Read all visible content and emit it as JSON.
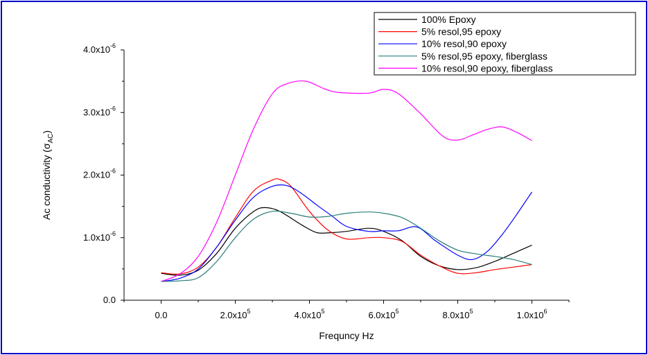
{
  "chart_data": {
    "type": "line",
    "title": "",
    "xlabel": "Frequncy Hz",
    "ylabel": "Ac conductivity (σ_AC)",
    "ylabel_main": "Ac conductivity (σ",
    "ylabel_sub": "AC",
    "ylabel_close": ")",
    "xlim": [
      -100000,
      1100000
    ],
    "ylim": [
      0,
      4e-06
    ],
    "x_ticks": [
      {
        "value": 0,
        "mant": "0.0",
        "exp": ""
      },
      {
        "value": 200000,
        "mant": "2.0x10",
        "exp": "5"
      },
      {
        "value": 400000,
        "mant": "4.0x10",
        "exp": "5"
      },
      {
        "value": 600000,
        "mant": "6.0x10",
        "exp": "5"
      },
      {
        "value": 800000,
        "mant": "8.0x10",
        "exp": "5"
      },
      {
        "value": 1000000,
        "mant": "1.0x10",
        "exp": "6"
      }
    ],
    "y_ticks": [
      {
        "value": 0,
        "mant": "0.0",
        "exp": ""
      },
      {
        "value": 1e-06,
        "mant": "1.0x10",
        "exp": "-6"
      },
      {
        "value": 2e-06,
        "mant": "2.0x10",
        "exp": "-6"
      },
      {
        "value": 3e-06,
        "mant": "3.0x10",
        "exp": "-6"
      },
      {
        "value": 4e-06,
        "mant": "4.0x10",
        "exp": "-6"
      }
    ],
    "legend_position": "top-right",
    "grid": false,
    "series": [
      {
        "name": "100% Epoxy",
        "color": "#000000",
        "x": [
          0,
          50000,
          100000,
          150000,
          200000,
          250000,
          280000,
          320000,
          380000,
          420000,
          460000,
          500000,
          560000,
          600000,
          650000,
          700000,
          750000,
          800000,
          850000,
          900000,
          950000,
          1000000
        ],
        "y": [
          4.3e-07,
          4e-07,
          4.8e-07,
          7.5e-07,
          1.15e-06,
          1.42e-06,
          1.48e-06,
          1.42e-06,
          1.2e-06,
          1.08e-06,
          1.08e-06,
          1.1e-06,
          1.15e-06,
          1.1e-06,
          9.5e-07,
          7e-07,
          5.5e-07,
          4.9e-07,
          5.2e-07,
          6.2e-07,
          7.5e-07,
          8.8e-07
        ]
      },
      {
        "name": "5% resol,95 epoxy",
        "color": "#ff0000",
        "x": [
          0,
          50000,
          100000,
          150000,
          200000,
          250000,
          300000,
          320000,
          350000,
          400000,
          450000,
          500000,
          560000,
          600000,
          650000,
          700000,
          750000,
          800000,
          850000,
          900000,
          950000,
          1000000
        ],
        "y": [
          4.4e-07,
          4.2e-07,
          5.3e-07,
          8.5e-07,
          1.32e-06,
          1.75e-06,
          1.92e-06,
          1.93e-06,
          1.82e-06,
          1.42e-06,
          1.12e-06,
          9.8e-07,
          1e-06,
          1e-06,
          9.4e-07,
          7.2e-07,
          5.5e-07,
          4.3e-07,
          4.4e-07,
          4.9e-07,
          5.3e-07,
          5.7e-07
        ]
      },
      {
        "name": "10% resol,90 epoxy",
        "color": "#0000ff",
        "x": [
          0,
          50000,
          100000,
          150000,
          200000,
          250000,
          300000,
          340000,
          380000,
          420000,
          460000,
          500000,
          560000,
          600000,
          640000,
          690000,
          740000,
          800000,
          840000,
          880000,
          920000,
          960000,
          1000000
        ],
        "y": [
          3e-07,
          3.5e-07,
          5e-07,
          8.5e-07,
          1.28e-06,
          1.65e-06,
          1.82e-06,
          1.83e-06,
          1.7e-06,
          1.52e-06,
          1.35e-06,
          1.18e-06,
          1.1e-06,
          1.11e-06,
          1.11e-06,
          1.17e-06,
          9.5e-07,
          7.2e-07,
          6.5e-07,
          7.8e-07,
          1.05e-06,
          1.38e-06,
          1.73e-06
        ]
      },
      {
        "name": "5% resol,95 epoxy, fiberglass",
        "color": "#2a7f7a",
        "x": [
          0,
          50000,
          100000,
          150000,
          200000,
          250000,
          300000,
          350000,
          400000,
          450000,
          500000,
          560000,
          600000,
          650000,
          700000,
          750000,
          800000,
          850000,
          900000,
          950000,
          1000000
        ],
        "y": [
          3e-07,
          3.1e-07,
          3.6e-07,
          6.2e-07,
          1e-06,
          1.3e-06,
          1.42e-06,
          1.39e-06,
          1.33e-06,
          1.34e-06,
          1.39e-06,
          1.41e-06,
          1.39e-06,
          1.32e-06,
          1.15e-06,
          9.5e-07,
          8e-07,
          7.4e-07,
          7e-07,
          6.5e-07,
          5.7e-07
        ]
      },
      {
        "name": "10% resol,90 epoxy, fiberglass",
        "color": "#ff00ff",
        "x": [
          0,
          50000,
          100000,
          150000,
          200000,
          250000,
          300000,
          340000,
          390000,
          440000,
          480000,
          560000,
          600000,
          640000,
          700000,
          760000,
          800000,
          840000,
          880000,
          920000,
          960000,
          1000000
        ],
        "y": [
          3e-07,
          4.2e-07,
          7e-07,
          1.25e-06,
          2e-06,
          2.75e-06,
          3.3e-06,
          3.46e-06,
          3.5e-06,
          3.38e-06,
          3.32e-06,
          3.31e-06,
          3.37e-06,
          3.3e-06,
          2.98e-06,
          2.62e-06,
          2.56e-06,
          2.64e-06,
          2.73e-06,
          2.77e-06,
          2.68e-06,
          2.55e-06
        ]
      }
    ]
  }
}
